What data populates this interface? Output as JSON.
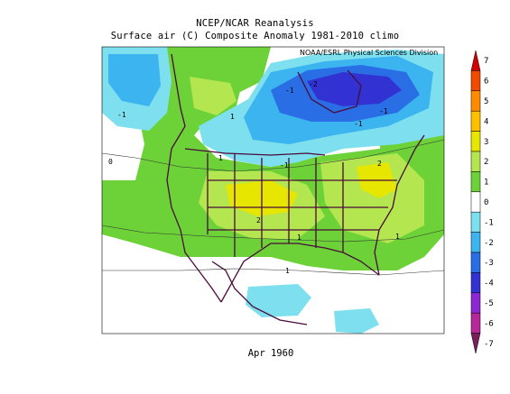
{
  "header": {
    "title_line1": "NCEP/NCAR Reanalysis",
    "title_line2": "Surface air (C) Composite Anomaly 1981-2010 climo",
    "credit": "NOAA/ESRL Physical Sciences Division"
  },
  "footer": {
    "date_label": "Apr 1960"
  },
  "colorbar": {
    "labels": [
      "7",
      "6",
      "5",
      "4",
      "3",
      "2",
      "1",
      "0",
      "-1",
      "-2",
      "-3",
      "-4",
      "-5",
      "-6",
      "-7"
    ],
    "colors": [
      "#d40000",
      "#f04a00",
      "#ff8c00",
      "#ffc000",
      "#e6e600",
      "#b4e650",
      "#6cd238",
      "#ffffff",
      "#7ee0ee",
      "#3cb4f0",
      "#2a6ee6",
      "#3232d2",
      "#8c28d2",
      "#b4289a",
      "#781e5a"
    ]
  },
  "contour_labels": [
    "-1",
    "-1",
    "-1",
    "-1",
    "-2",
    "1",
    "1",
    "-1",
    "0",
    "2",
    "1",
    "1",
    "2",
    "1"
  ],
  "colors": {
    "background_zero": "#ffffff",
    "light_green": "#6cd238",
    "yellow_green": "#b4e650",
    "yellow": "#e6e600",
    "cyan": "#7ee0ee",
    "light_blue": "#3cb4f0",
    "blue": "#2a6ee6",
    "dark_blue": "#3232d2",
    "boundary": "#4a0a3a"
  }
}
